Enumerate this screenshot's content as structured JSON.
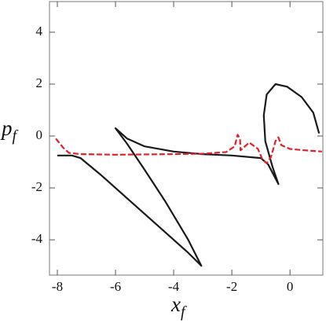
{
  "chart_data": {
    "type": "line",
    "xlabel": {
      "base": "x",
      "sub": "f"
    },
    "ylabel": {
      "base": "p",
      "sub": "f"
    },
    "xlim": [
      -8.27,
      1.13
    ],
    "ylim": [
      -5.36,
      5.18
    ],
    "xticks": [
      -8,
      -6,
      -4,
      -2,
      0
    ],
    "yticks": [
      -4,
      -2,
      0,
      2,
      4
    ],
    "series": [
      {
        "color": "#1a1a1a",
        "dash": false,
        "x": [
          -8.0,
          -7.5,
          -7.2,
          -6.5,
          -5.5,
          -4.5,
          -3.5,
          -3.05,
          -3.5,
          -4.3,
          -5.0,
          -5.6,
          -6.0,
          -5.6,
          -5.0,
          -4.0,
          -3.0,
          -2.0,
          -1.0,
          -0.75,
          -0.4,
          -0.6,
          -0.85,
          -0.9,
          -0.8,
          -0.5,
          -0.1,
          0.4,
          0.8,
          1.0
        ],
        "values": [
          -0.75,
          -0.75,
          -0.85,
          -1.5,
          -2.5,
          -3.5,
          -4.5,
          -5.0,
          -4.0,
          -2.5,
          -1.3,
          -0.3,
          0.3,
          -0.1,
          -0.4,
          -0.6,
          -0.7,
          -0.75,
          -0.85,
          -1.1,
          -1.85,
          -1.2,
          -0.2,
          0.8,
          1.6,
          2.0,
          1.9,
          1.5,
          0.9,
          0.1
        ]
      },
      {
        "color": "#e0202a",
        "dash": true,
        "x": [
          -8.05,
          -7.8,
          -7.6,
          -7.2,
          -6.0,
          -4.0,
          -3.0,
          -2.2,
          -1.9,
          -1.8,
          -1.72,
          -1.7,
          -1.4,
          -1.1,
          -0.95,
          -0.8,
          -0.65,
          -0.5,
          -0.4,
          -0.3,
          0.0,
          0.5,
          1.1
        ],
        "values": [
          -0.1,
          -0.45,
          -0.65,
          -0.7,
          -0.72,
          -0.7,
          -0.68,
          -0.62,
          -0.4,
          0.05,
          -0.1,
          -0.55,
          -0.25,
          -0.5,
          -0.9,
          -1.05,
          -0.8,
          -0.2,
          -0.05,
          -0.35,
          -0.5,
          -0.55,
          -0.6
        ]
      }
    ]
  }
}
